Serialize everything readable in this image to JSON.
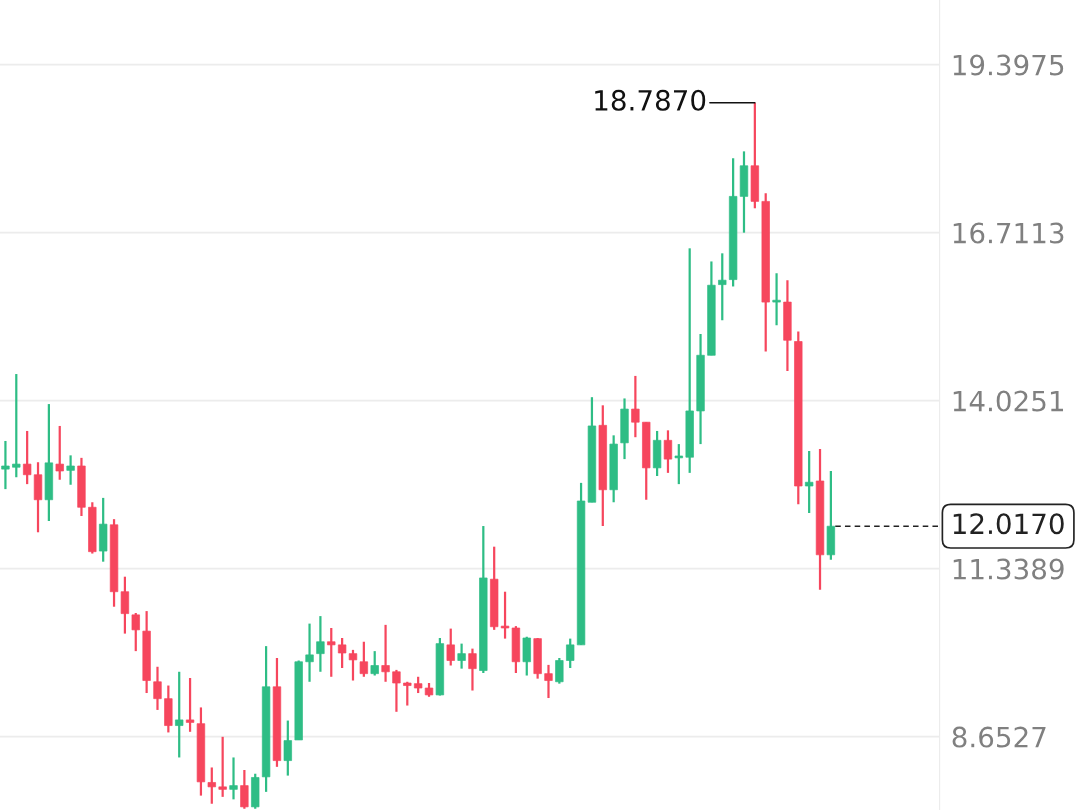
{
  "chart_data": {
    "type": "candlestick",
    "categories": [
      null,
      null,
      null,
      null,
      null,
      null,
      null,
      null,
      null,
      null,
      null,
      null,
      null,
      null,
      null,
      null,
      null,
      null,
      null,
      null,
      null,
      null,
      null,
      null,
      null,
      null,
      null,
      null,
      null,
      null,
      null,
      null,
      null,
      null,
      null,
      null,
      null,
      null,
      null,
      null,
      null,
      null,
      null,
      null,
      null,
      null,
      null,
      null,
      null,
      null,
      null,
      null,
      null,
      null,
      null,
      null,
      null,
      null,
      null,
      null,
      null,
      null,
      null,
      null,
      null,
      null,
      null,
      null,
      null,
      null,
      null,
      null,
      null,
      null,
      null,
      null,
      null
    ],
    "ohlc": [
      [
        12.93,
        13.38,
        12.61,
        12.98
      ],
      [
        12.96,
        14.45,
        12.8,
        13.01
      ],
      [
        13.01,
        13.54,
        12.69,
        12.84
      ],
      [
        12.84,
        13.04,
        11.92,
        12.44
      ],
      [
        12.44,
        13.97,
        12.1,
        13.03
      ],
      [
        13.01,
        13.62,
        12.76,
        12.9
      ],
      [
        12.91,
        13.15,
        12.68,
        12.98
      ],
      [
        12.98,
        13.11,
        12.18,
        12.32
      ],
      [
        12.32,
        12.4,
        11.58,
        11.61
      ],
      [
        11.62,
        12.47,
        11.45,
        12.05
      ],
      [
        12.04,
        12.13,
        10.73,
        10.97
      ],
      [
        10.97,
        11.21,
        10.3,
        10.62
      ],
      [
        10.6,
        10.63,
        10.02,
        10.36
      ],
      [
        10.34,
        10.66,
        9.35,
        9.55
      ],
      [
        9.53,
        9.77,
        9.08,
        9.26
      ],
      [
        9.26,
        9.47,
        8.72,
        8.83
      ],
      [
        8.83,
        9.69,
        8.32,
        8.92
      ],
      [
        8.92,
        9.59,
        8.73,
        8.88
      ],
      [
        8.86,
        9.12,
        7.71,
        7.93
      ],
      [
        7.92,
        8.16,
        7.58,
        7.85
      ],
      [
        7.85,
        8.65,
        7.69,
        7.81
      ],
      [
        7.81,
        8.32,
        7.65,
        7.87
      ],
      [
        7.87,
        8.12,
        7.5,
        7.53
      ],
      [
        7.53,
        8.06,
        7.5,
        8.0
      ],
      [
        8.01,
        10.1,
        7.77,
        9.45
      ],
      [
        9.45,
        9.91,
        8.17,
        8.27
      ],
      [
        8.27,
        8.91,
        8.03,
        8.59
      ],
      [
        8.6,
        9.87,
        8.6,
        9.85
      ],
      [
        9.85,
        10.46,
        9.53,
        9.96
      ],
      [
        9.98,
        10.58,
        9.69,
        10.17
      ],
      [
        10.17,
        10.39,
        9.61,
        10.12
      ],
      [
        10.12,
        10.23,
        9.75,
        9.99
      ],
      [
        9.98,
        10.04,
        9.55,
        9.88
      ],
      [
        9.85,
        10.17,
        9.61,
        9.66
      ],
      [
        9.66,
        10.02,
        9.63,
        9.79
      ],
      [
        9.79,
        10.44,
        9.53,
        9.69
      ],
      [
        9.69,
        9.72,
        9.05,
        9.51
      ],
      [
        9.51,
        9.53,
        9.15,
        9.47
      ],
      [
        9.5,
        9.61,
        9.35,
        9.43
      ],
      [
        9.43,
        9.51,
        9.29,
        9.32
      ],
      [
        9.32,
        10.23,
        9.31,
        10.14
      ],
      [
        10.12,
        10.38,
        9.79,
        9.87
      ],
      [
        9.87,
        10.14,
        9.74,
        9.98
      ],
      [
        9.98,
        10.06,
        9.39,
        9.74
      ],
      [
        9.71,
        12.02,
        9.67,
        11.19
      ],
      [
        11.17,
        11.69,
        10.36,
        10.41
      ],
      [
        10.41,
        10.97,
        10.22,
        10.39
      ],
      [
        10.39,
        10.42,
        9.67,
        9.85
      ],
      [
        9.85,
        10.25,
        9.63,
        10.23
      ],
      [
        10.22,
        10.23,
        9.58,
        9.66
      ],
      [
        9.66,
        9.8,
        9.27,
        9.55
      ],
      [
        9.53,
        9.91,
        9.5,
        9.87
      ],
      [
        9.87,
        10.22,
        9.75,
        10.12
      ],
      [
        10.12,
        12.71,
        10.12,
        12.42
      ],
      [
        12.4,
        14.08,
        12.4,
        13.62
      ],
      [
        13.63,
        13.95,
        12.02,
        12.6
      ],
      [
        12.6,
        13.47,
        12.4,
        13.33
      ],
      [
        13.35,
        14.06,
        13.09,
        13.89
      ],
      [
        13.89,
        14.42,
        13.44,
        13.68
      ],
      [
        13.68,
        13.68,
        12.44,
        12.95
      ],
      [
        12.95,
        13.54,
        12.82,
        13.39
      ],
      [
        13.39,
        13.55,
        12.87,
        13.09
      ],
      [
        13.11,
        13.33,
        12.69,
        13.14
      ],
      [
        13.12,
        16.46,
        12.87,
        13.86
      ],
      [
        13.86,
        15.09,
        13.33,
        14.75
      ],
      [
        14.75,
        16.25,
        14.75,
        15.87
      ],
      [
        15.88,
        16.38,
        15.31,
        15.95
      ],
      [
        15.96,
        17.9,
        15.85,
        17.29
      ],
      [
        17.29,
        18.01,
        16.71,
        17.78
      ],
      [
        17.78,
        18.787,
        17.1,
        17.21
      ],
      [
        17.21,
        17.34,
        14.81,
        15.6
      ],
      [
        15.6,
        16.06,
        15.23,
        15.63
      ],
      [
        15.6,
        15.95,
        14.5,
        14.99
      ],
      [
        14.97,
        15.13,
        12.37,
        12.66
      ],
      [
        12.66,
        13.22,
        12.23,
        12.72
      ],
      [
        12.74,
        13.25,
        11.0,
        11.56
      ],
      [
        11.56,
        12.9,
        11.48,
        12.017
      ]
    ],
    "colors": [
      "#2ebd85",
      "#2ebd85",
      "#f6465d",
      "#f6465d",
      "#2ebd85",
      "#f6465d",
      "#2ebd85",
      "#f6465d",
      "#f6465d",
      "#2ebd85",
      "#f6465d",
      "#f6465d",
      "#f6465d",
      "#f6465d",
      "#f6465d",
      "#f6465d",
      "#2ebd85",
      "#f6465d",
      "#f6465d",
      "#f6465d",
      "#f6465d",
      "#2ebd85",
      "#f6465d",
      "#2ebd85",
      "#2ebd85",
      "#f6465d",
      "#2ebd85",
      "#2ebd85",
      "#2ebd85",
      "#2ebd85",
      "#f6465d",
      "#f6465d",
      "#f6465d",
      "#f6465d",
      "#2ebd85",
      "#f6465d",
      "#f6465d",
      "#f6465d",
      "#f6465d",
      "#f6465d",
      "#2ebd85",
      "#f6465d",
      "#2ebd85",
      "#f6465d",
      "#2ebd85",
      "#f6465d",
      "#f6465d",
      "#f6465d",
      "#2ebd85",
      "#f6465d",
      "#f6465d",
      "#2ebd85",
      "#2ebd85",
      "#2ebd85",
      "#2ebd85",
      "#f6465d",
      "#2ebd85",
      "#2ebd85",
      "#f6465d",
      "#f6465d",
      "#2ebd85",
      "#f6465d",
      "#2ebd85",
      "#2ebd85",
      "#2ebd85",
      "#2ebd85",
      "#2ebd85",
      "#2ebd85",
      "#2ebd85",
      "#f6465d",
      "#f6465d",
      "#2ebd85",
      "#f6465d",
      "#f6465d",
      "#2ebd85",
      "#f6465d",
      "#2ebd85"
    ],
    "ylim": [
      7.48,
      20.43
    ],
    "yticks": [
      {
        "value": 8.6527,
        "label": "8.6527"
      },
      {
        "value": 11.3389,
        "label": "11.3389"
      },
      {
        "value": 14.0251,
        "label": "14.0251"
      },
      {
        "value": 16.7113,
        "label": "16.7113"
      },
      {
        "value": 19.3975,
        "label": "19.3975"
      }
    ],
    "tick_labels": "y",
    "grid": "y",
    "annotations": [
      "18.7870"
    ],
    "ref_lines": [
      {
        "axis": "y",
        "value": 12.017,
        "label": "12.0170",
        "color": "#222222",
        "line_style": "dashed"
      }
    ]
  }
}
